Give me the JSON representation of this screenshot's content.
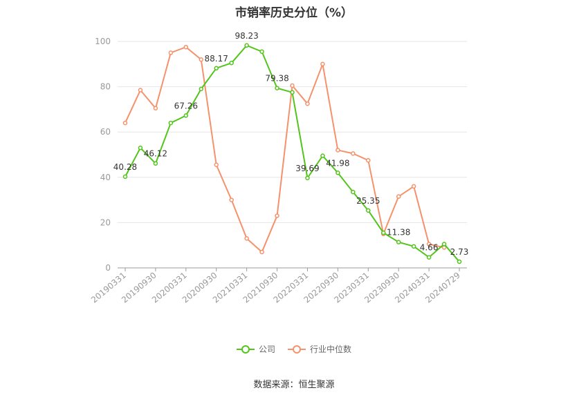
{
  "title": "市销率历史分位（%）",
  "source": "数据来源：恒生聚源",
  "chart_data": {
    "type": "line",
    "title": "市销率历史分位（%）",
    "ylim": [
      0,
      100
    ],
    "yticks": [
      0,
      20,
      40,
      60,
      80,
      100
    ],
    "grid": true,
    "legend_position": "bottom",
    "x": [
      "20190331",
      "20190630",
      "20190930",
      "20191231",
      "20200331",
      "20200630",
      "20200930",
      "20201231",
      "20210331",
      "20210630",
      "20210930",
      "20211231",
      "20220331",
      "20220630",
      "20220930",
      "20221231",
      "20230331",
      "20230630",
      "20230930",
      "20231231",
      "20240331",
      "20240630",
      "20240729"
    ],
    "x_tick_labels": [
      "20190331",
      "20190930",
      "20200331",
      "20200930",
      "20210331",
      "20210930",
      "20220331",
      "20220930",
      "20230331",
      "20230930",
      "20240331",
      "20240729"
    ],
    "series": [
      {
        "name": "公司",
        "color": "#52c41a",
        "values": [
          40.28,
          53,
          46.12,
          64,
          67.26,
          79,
          88.17,
          90.5,
          98.23,
          95.5,
          79.38,
          77.5,
          39.69,
          49.5,
          41.98,
          33.5,
          25.35,
          15.5,
          11.38,
          9.5,
          4.66,
          10.5,
          2.73
        ],
        "labels": {
          "0": "40.28",
          "2": "46.12",
          "4": "67.26",
          "6": "88.17",
          "8": "98.23",
          "10": "79.38",
          "12": "39.69",
          "14": "41.98",
          "16": "25.35",
          "18": "11.38",
          "20": "4.66",
          "22": "2.73"
        }
      },
      {
        "name": "行业中位数",
        "color": "#f5916b",
        "values": [
          64,
          78.5,
          70.5,
          95,
          97.5,
          92,
          45.5,
          30,
          13,
          7,
          23,
          80.5,
          72.5,
          90,
          52,
          50.5,
          47.5,
          15,
          31.5,
          36,
          10.5,
          9,
          null
        ]
      }
    ]
  }
}
